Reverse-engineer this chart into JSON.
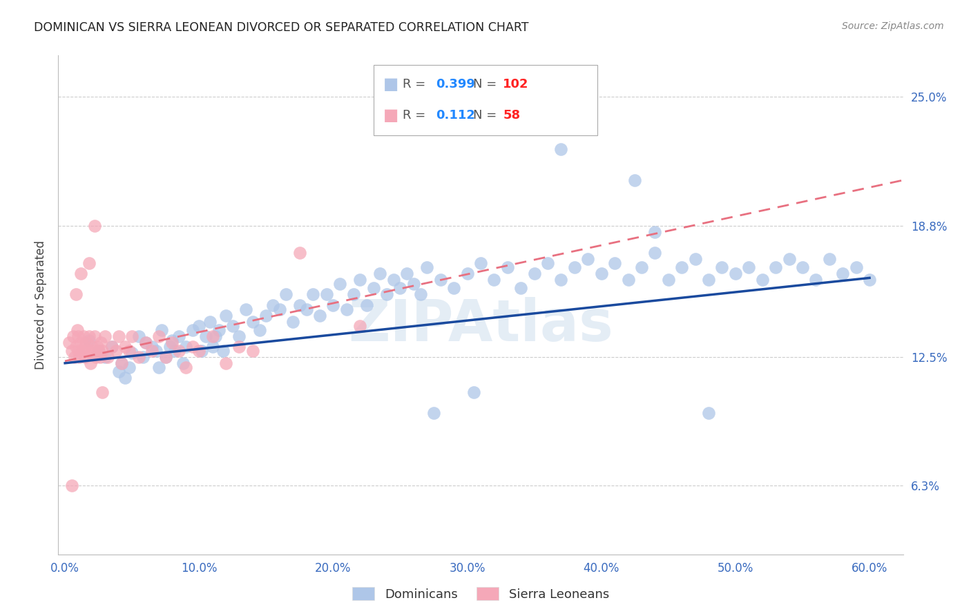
{
  "title": "DOMINICAN VS SIERRA LEONEAN DIVORCED OR SEPARATED CORRELATION CHART",
  "source": "Source: ZipAtlas.com",
  "ylabel": "Divorced or Separated",
  "xlabel_ticks": [
    "0.0%",
    "10.0%",
    "20.0%",
    "30.0%",
    "40.0%",
    "50.0%",
    "60.0%"
  ],
  "xlabel_vals": [
    0.0,
    0.1,
    0.2,
    0.3,
    0.4,
    0.5,
    0.6
  ],
  "ytick_labels": [
    "6.3%",
    "12.5%",
    "18.8%",
    "25.0%"
  ],
  "ytick_vals": [
    0.063,
    0.125,
    0.188,
    0.25
  ],
  "xlim": [
    -0.005,
    0.625
  ],
  "ylim": [
    0.03,
    0.27
  ],
  "legend1_r": "0.399",
  "legend1_n": "102",
  "legend2_r": "0.112",
  "legend2_n": "58",
  "legend1_label": "Dominicans",
  "legend2_label": "Sierra Leoneans",
  "dot_color_blue": "#aec6e8",
  "dot_color_pink": "#f5a8b8",
  "line_color_blue": "#1a4a9e",
  "line_color_pink": "#e87080",
  "legend_r_color": "#2288ff",
  "legend_n_color": "#ff2222",
  "watermark": "ZIPAtlas",
  "blue_points_x": [
    0.018,
    0.025,
    0.03,
    0.035,
    0.04,
    0.042,
    0.045,
    0.048,
    0.05,
    0.055,
    0.058,
    0.06,
    0.065,
    0.068,
    0.07,
    0.072,
    0.075,
    0.078,
    0.08,
    0.082,
    0.085,
    0.088,
    0.09,
    0.095,
    0.1,
    0.102,
    0.105,
    0.108,
    0.11,
    0.112,
    0.115,
    0.118,
    0.12,
    0.125,
    0.13,
    0.135,
    0.14,
    0.145,
    0.15,
    0.155,
    0.16,
    0.165,
    0.17,
    0.175,
    0.18,
    0.185,
    0.19,
    0.195,
    0.2,
    0.205,
    0.21,
    0.215,
    0.22,
    0.225,
    0.23,
    0.235,
    0.24,
    0.245,
    0.25,
    0.255,
    0.26,
    0.265,
    0.27,
    0.28,
    0.29,
    0.3,
    0.31,
    0.32,
    0.33,
    0.34,
    0.35,
    0.36,
    0.37,
    0.38,
    0.39,
    0.4,
    0.41,
    0.42,
    0.43,
    0.44,
    0.45,
    0.46,
    0.47,
    0.48,
    0.49,
    0.5,
    0.51,
    0.52,
    0.53,
    0.54,
    0.55,
    0.56,
    0.57,
    0.58,
    0.59,
    0.6,
    0.305,
    0.275,
    0.425,
    0.37,
    0.44,
    0.48
  ],
  "blue_points_y": [
    0.133,
    0.128,
    0.125,
    0.13,
    0.118,
    0.122,
    0.115,
    0.12,
    0.127,
    0.135,
    0.125,
    0.132,
    0.13,
    0.128,
    0.12,
    0.138,
    0.125,
    0.13,
    0.133,
    0.128,
    0.135,
    0.122,
    0.13,
    0.138,
    0.14,
    0.128,
    0.135,
    0.142,
    0.13,
    0.135,
    0.138,
    0.128,
    0.145,
    0.14,
    0.135,
    0.148,
    0.142,
    0.138,
    0.145,
    0.15,
    0.148,
    0.155,
    0.142,
    0.15,
    0.148,
    0.155,
    0.145,
    0.155,
    0.15,
    0.16,
    0.148,
    0.155,
    0.162,
    0.15,
    0.158,
    0.165,
    0.155,
    0.162,
    0.158,
    0.165,
    0.16,
    0.155,
    0.168,
    0.162,
    0.158,
    0.165,
    0.17,
    0.162,
    0.168,
    0.158,
    0.165,
    0.17,
    0.162,
    0.168,
    0.172,
    0.165,
    0.17,
    0.162,
    0.168,
    0.175,
    0.162,
    0.168,
    0.172,
    0.162,
    0.168,
    0.165,
    0.168,
    0.162,
    0.168,
    0.172,
    0.168,
    0.162,
    0.172,
    0.165,
    0.168,
    0.162,
    0.108,
    0.098,
    0.21,
    0.225,
    0.185,
    0.098
  ],
  "pink_points_x": [
    0.003,
    0.005,
    0.006,
    0.007,
    0.008,
    0.009,
    0.01,
    0.01,
    0.011,
    0.012,
    0.013,
    0.014,
    0.015,
    0.015,
    0.016,
    0.017,
    0.018,
    0.019,
    0.02,
    0.021,
    0.022,
    0.023,
    0.024,
    0.025,
    0.026,
    0.027,
    0.028,
    0.03,
    0.032,
    0.035,
    0.038,
    0.04,
    0.042,
    0.045,
    0.048,
    0.05,
    0.055,
    0.06,
    0.065,
    0.07,
    0.075,
    0.08,
    0.085,
    0.09,
    0.095,
    0.1,
    0.11,
    0.12,
    0.13,
    0.14,
    0.175,
    0.22,
    0.008,
    0.012,
    0.018,
    0.022,
    0.028,
    0.005
  ],
  "pink_points_y": [
    0.132,
    0.128,
    0.135,
    0.125,
    0.13,
    0.138,
    0.128,
    0.135,
    0.125,
    0.132,
    0.128,
    0.135,
    0.13,
    0.125,
    0.132,
    0.128,
    0.135,
    0.122,
    0.13,
    0.128,
    0.135,
    0.125,
    0.13,
    0.128,
    0.125,
    0.132,
    0.128,
    0.135,
    0.125,
    0.13,
    0.128,
    0.135,
    0.122,
    0.13,
    0.128,
    0.135,
    0.125,
    0.132,
    0.128,
    0.135,
    0.125,
    0.132,
    0.128,
    0.12,
    0.13,
    0.128,
    0.135,
    0.122,
    0.13,
    0.128,
    0.175,
    0.14,
    0.155,
    0.165,
    0.17,
    0.188,
    0.108,
    0.063
  ],
  "blue_trend_x0": 0.0,
  "blue_trend_x1": 0.6,
  "blue_trend_y0": 0.122,
  "blue_trend_y1": 0.163,
  "pink_trend_x0": 0.0,
  "pink_trend_x1": 0.625,
  "pink_trend_y0": 0.123,
  "pink_trend_y1": 0.21
}
